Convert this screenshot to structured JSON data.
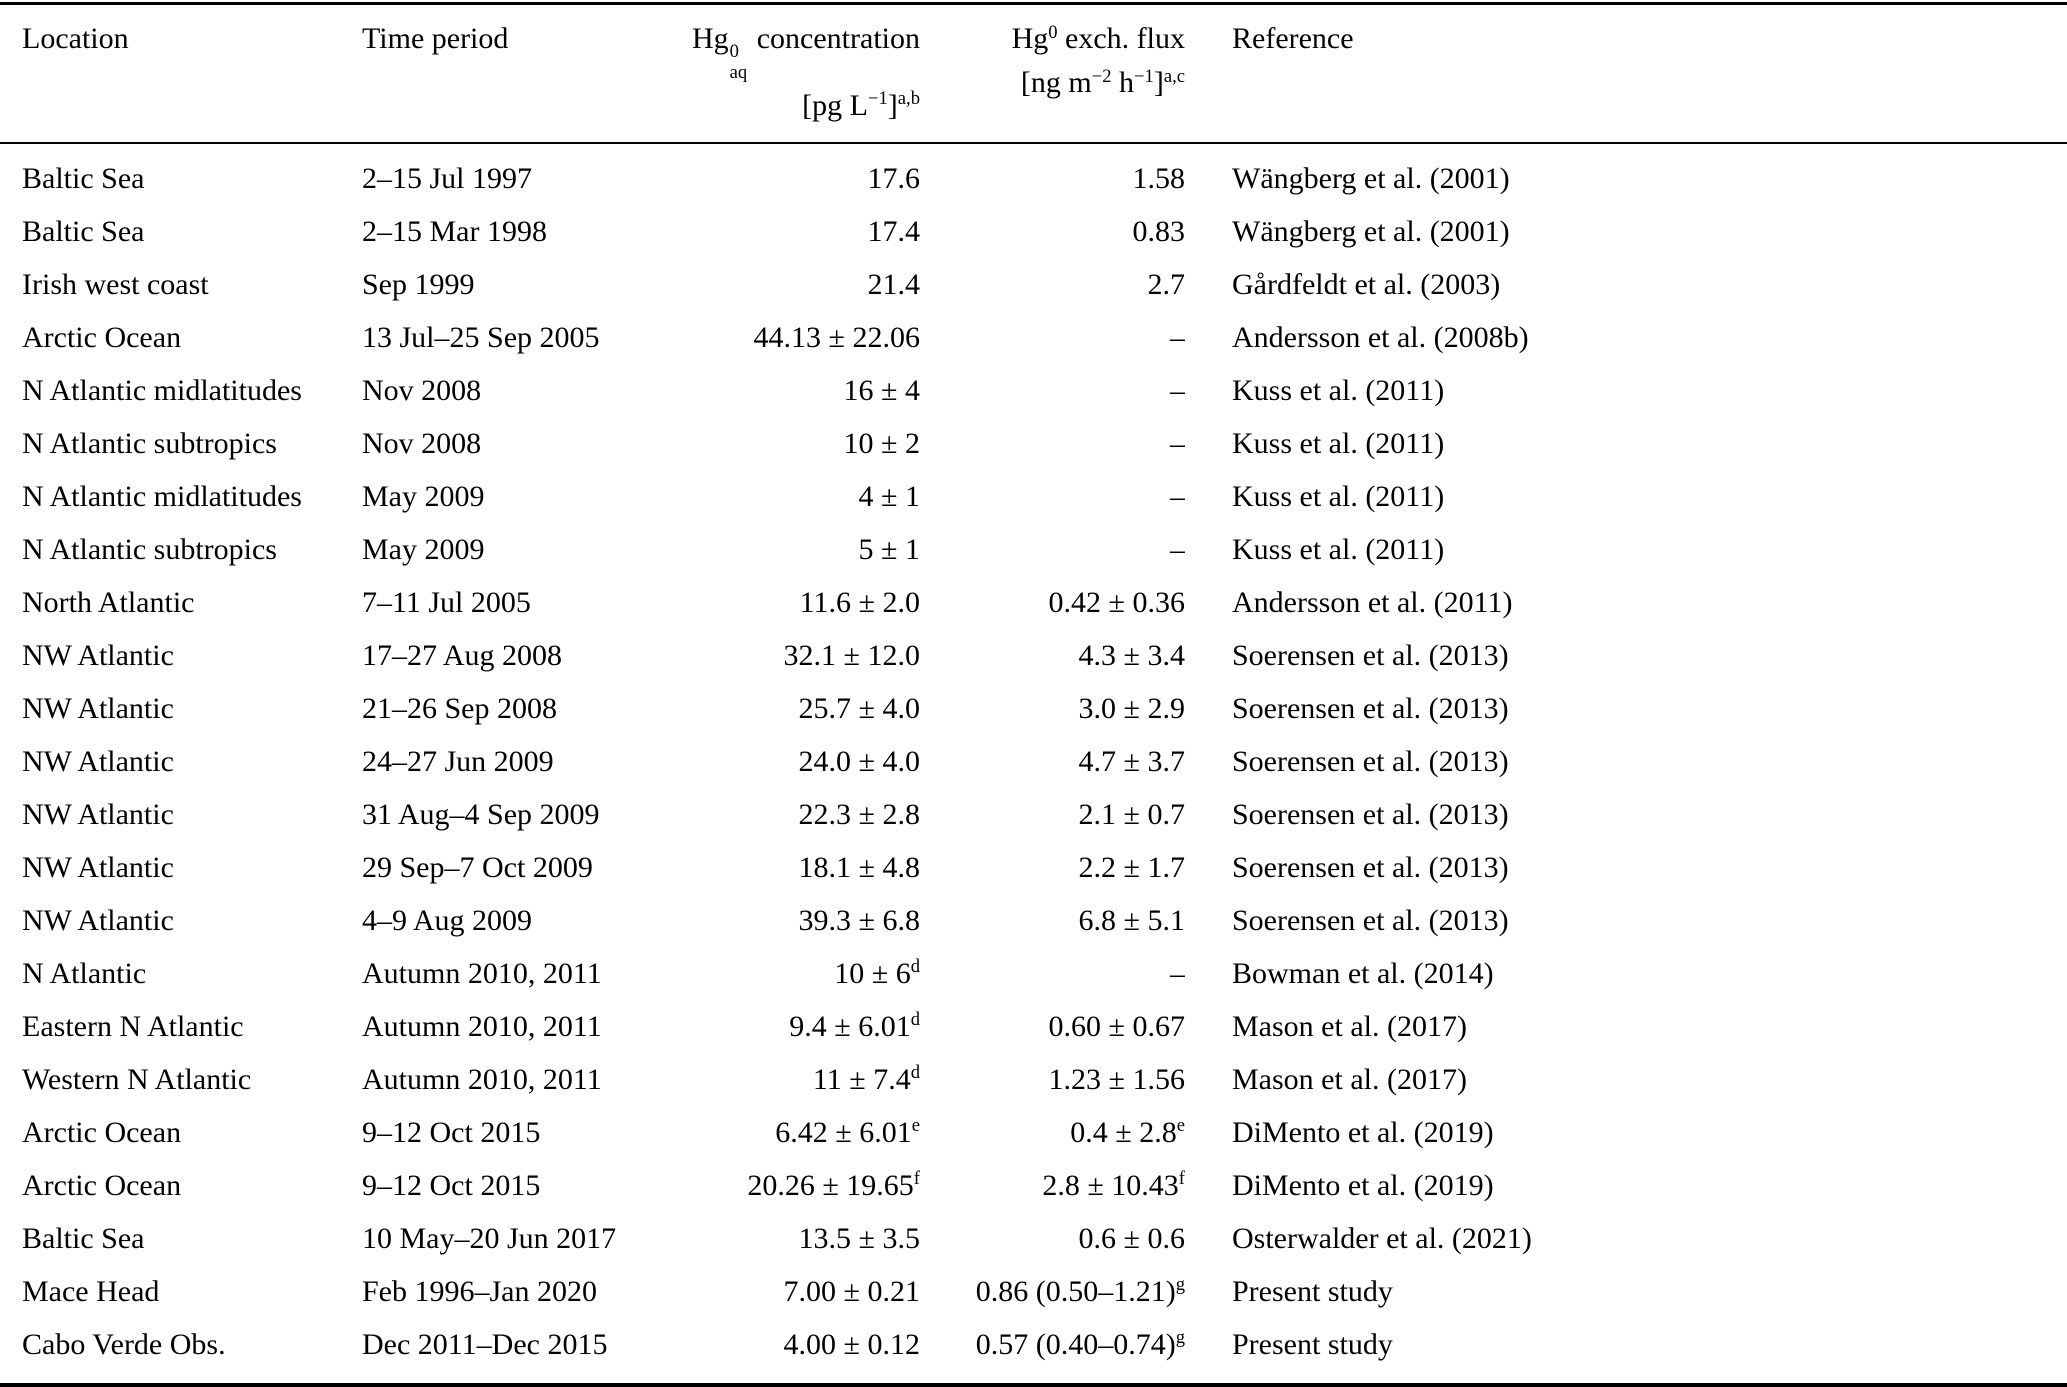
{
  "table": {
    "header": {
      "location": "Location",
      "period": "Time period",
      "reference": "Reference",
      "conc_line1": [
        {
          "t": "Hg"
        },
        {
          "stack": [
            "0",
            "aq"
          ]
        },
        {
          "t": " concentration"
        }
      ],
      "conc_line2": [
        {
          "t": "[pg L"
        },
        {
          "t": "−1",
          "sup": true
        },
        {
          "t": "]"
        },
        {
          "t": "a,b",
          "sup": true
        }
      ],
      "flux_line1": [
        {
          "t": "Hg"
        },
        {
          "t": "0",
          "sup": true
        },
        {
          "t": " exch. flux"
        }
      ],
      "flux_line2": [
        {
          "t": "[ng m"
        },
        {
          "t": "−2",
          "sup": true
        },
        {
          "t": " h"
        },
        {
          "t": "−1",
          "sup": true
        },
        {
          "t": "]"
        },
        {
          "t": "a,c",
          "sup": true
        }
      ]
    },
    "rows": [
      {
        "location": "Baltic Sea",
        "period": "2–15 Jul 1997",
        "conc": "17.6",
        "flux": "1.58",
        "reference": "Wängberg et al. (2001)"
      },
      {
        "location": "Baltic Sea",
        "period": "2–15 Mar 1998",
        "conc": "17.4",
        "flux": "0.83",
        "reference": "Wängberg et al. (2001)"
      },
      {
        "location": "Irish west coast",
        "period": "Sep 1999",
        "conc": "21.4",
        "flux": "2.7",
        "reference": "Gårdfeldt et al. (2003)"
      },
      {
        "location": "Arctic Ocean",
        "period": "13 Jul–25 Sep 2005",
        "conc": "44.13 ± 22.06",
        "flux": "–",
        "reference": "Andersson et al. (2008b)"
      },
      {
        "location": "N Atlantic midlatitudes",
        "period": "Nov 2008",
        "conc": "16 ± 4",
        "flux": "–",
        "reference": "Kuss et al. (2011)"
      },
      {
        "location": "N Atlantic subtropics",
        "period": "Nov 2008",
        "conc": "10 ± 2",
        "flux": "–",
        "reference": "Kuss et al. (2011)"
      },
      {
        "location": "N Atlantic midlatitudes",
        "period": "May 2009",
        "conc": "4 ± 1",
        "flux": "–",
        "reference": "Kuss et al. (2011)"
      },
      {
        "location": "N Atlantic subtropics",
        "period": "May 2009",
        "conc": "5 ± 1",
        "flux": "–",
        "reference": "Kuss et al. (2011)"
      },
      {
        "location": "North Atlantic",
        "period": "7–11 Jul 2005",
        "conc": "11.6 ± 2.0",
        "flux": "0.42 ± 0.36",
        "reference": "Andersson et al. (2011)"
      },
      {
        "location": "NW Atlantic",
        "period": "17–27 Aug 2008",
        "conc": "32.1 ± 12.0",
        "flux": "4.3 ± 3.4",
        "reference": "Soerensen et al. (2013)"
      },
      {
        "location": "NW Atlantic",
        "period": "21–26 Sep 2008",
        "conc": "25.7 ± 4.0",
        "flux": "3.0 ± 2.9",
        "reference": "Soerensen et al. (2013)"
      },
      {
        "location": "NW Atlantic",
        "period": "24–27 Jun 2009",
        "conc": "24.0 ± 4.0",
        "flux": "4.7 ± 3.7",
        "reference": "Soerensen et al. (2013)"
      },
      {
        "location": "NW Atlantic",
        "period": "31 Aug–4 Sep 2009",
        "conc": "22.3 ± 2.8",
        "flux": "2.1 ± 0.7",
        "reference": "Soerensen et al. (2013)"
      },
      {
        "location": "NW Atlantic",
        "period": "29 Sep–7 Oct 2009",
        "conc": "18.1 ± 4.8",
        "flux": "2.2 ± 1.7",
        "reference": "Soerensen et al. (2013)"
      },
      {
        "location": "NW Atlantic",
        "period": "4–9 Aug 2009",
        "conc": "39.3 ± 6.8",
        "flux": "6.8 ± 5.1",
        "reference": "Soerensen et al. (2013)"
      },
      {
        "location": "N Atlantic",
        "period": "Autumn 2010, 2011",
        "conc": "10 ± 6",
        "conc_sup": "d",
        "flux": "–",
        "reference": "Bowman et al. (2014)"
      },
      {
        "location": "Eastern N Atlantic",
        "period": "Autumn 2010, 2011",
        "conc": "9.4 ± 6.01",
        "conc_sup": "d",
        "flux": "0.60 ± 0.67",
        "reference": "Mason et al. (2017)"
      },
      {
        "location": "Western N Atlantic",
        "period": "Autumn 2010, 2011",
        "conc": "11 ± 7.4",
        "conc_sup": "d",
        "flux": "1.23 ± 1.56",
        "reference": "Mason et al. (2017)"
      },
      {
        "location": "Arctic Ocean",
        "period": "9–12 Oct 2015",
        "conc": "6.42 ± 6.01",
        "conc_sup": "e",
        "flux": "0.4 ± 2.8",
        "flux_sup": "e",
        "reference": "DiMento et al. (2019)"
      },
      {
        "location": "Arctic Ocean",
        "period": "9–12 Oct 2015",
        "conc": "20.26 ± 19.65",
        "conc_sup": "f",
        "flux": "2.8 ± 10.43",
        "flux_sup": "f",
        "reference": "DiMento et al. (2019)"
      },
      {
        "location": "Baltic Sea",
        "period": "10 May–20 Jun 2017",
        "conc": "13.5 ± 3.5",
        "flux": "0.6 ± 0.6",
        "reference": "Osterwalder et al. (2021)"
      },
      {
        "location": "Mace Head",
        "period": "Feb 1996–Jan 2020",
        "conc": "7.00 ± 0.21",
        "flux": "0.86 (0.50–1.21)",
        "flux_sup": "g",
        "reference": "Present study"
      },
      {
        "location": "Cabo Verde Obs.",
        "period": "Dec 2011–Dec 2015",
        "conc": "4.00 ± 0.12",
        "flux": "0.57 (0.40–0.74)",
        "flux_sup": "g",
        "reference": "Present study"
      }
    ]
  }
}
